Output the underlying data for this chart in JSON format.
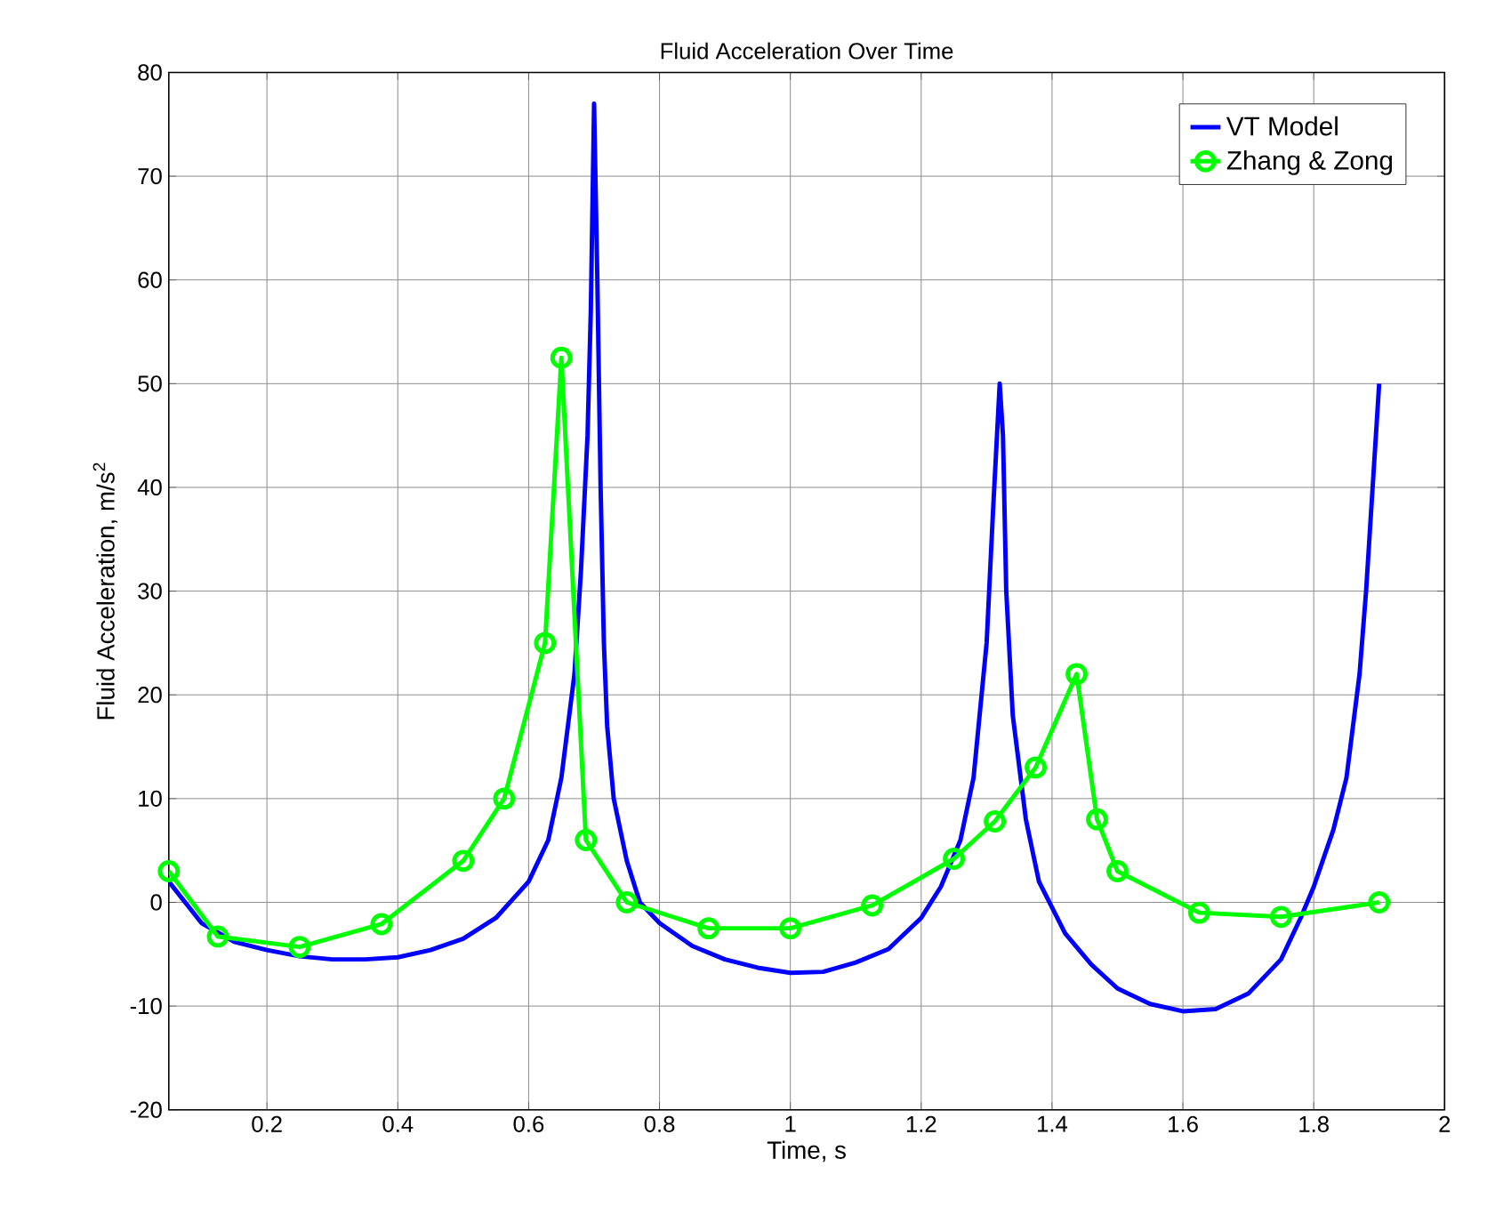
{
  "chart_data": {
    "type": "line",
    "title": "Fluid Acceleration Over Time",
    "xlabel": "Time, s",
    "ylabel": "Fluid Acceleration, m/s$^{2}$",
    "xlim": [
      0.05,
      2
    ],
    "ylim": [
      -20,
      80
    ],
    "xticks": [
      0.2,
      0.4,
      0.6,
      0.8,
      1,
      1.2,
      1.4,
      1.6,
      1.8,
      2
    ],
    "yticks": [
      -20,
      -10,
      0,
      10,
      20,
      30,
      40,
      50,
      60,
      70,
      80
    ],
    "grid": true,
    "legend": "top right",
    "series": [
      {
        "name": "VT Model",
        "color": "#0000ff",
        "marker": "none",
        "x": [
          0.05,
          0.1,
          0.15,
          0.2,
          0.25,
          0.3,
          0.35,
          0.4,
          0.45,
          0.5,
          0.55,
          0.6,
          0.63,
          0.65,
          0.67,
          0.68,
          0.69,
          0.695,
          0.7,
          0.705,
          0.71,
          0.715,
          0.72,
          0.73,
          0.75,
          0.77,
          0.8,
          0.85,
          0.9,
          0.95,
          1.0,
          1.05,
          1.1,
          1.15,
          1.2,
          1.23,
          1.26,
          1.28,
          1.3,
          1.31,
          1.32,
          1.325,
          1.33,
          1.34,
          1.36,
          1.38,
          1.42,
          1.46,
          1.5,
          1.55,
          1.6,
          1.65,
          1.7,
          1.75,
          1.78,
          1.8,
          1.83,
          1.85,
          1.87,
          1.88,
          1.89,
          1.9
        ],
        "values": [
          2,
          -2,
          -3.8,
          -4.6,
          -5.2,
          -5.5,
          -5.5,
          -5.3,
          -4.6,
          -3.5,
          -1.5,
          2,
          6,
          12,
          22,
          32,
          45,
          57,
          77,
          60,
          40,
          25,
          17,
          10,
          4,
          0,
          -2,
          -4.2,
          -5.5,
          -6.3,
          -6.8,
          -6.7,
          -5.8,
          -4.5,
          -1.5,
          1.5,
          6,
          12,
          25,
          38,
          50,
          45,
          30,
          18,
          8,
          2,
          -3,
          -6,
          -8.3,
          -9.8,
          -10.5,
          -10.3,
          -8.8,
          -5.5,
          -1.5,
          1.5,
          7,
          12,
          22,
          30,
          40,
          50
        ]
      },
      {
        "name": "Zhang & Zong",
        "color": "#00ff00",
        "marker": "circle",
        "x": [
          0.05,
          0.125,
          0.25,
          0.375,
          0.5,
          0.5625,
          0.625,
          0.65,
          0.6875,
          0.75,
          0.875,
          1.0,
          1.125,
          1.25,
          1.3125,
          1.375,
          1.4375,
          1.46875,
          1.5,
          1.625,
          1.75,
          1.9
        ],
        "values": [
          3,
          -3.3,
          -4.3,
          -2.1,
          4,
          10,
          25,
          52.5,
          6,
          0,
          -2.5,
          -2.5,
          -0.3,
          4.2,
          7.8,
          13,
          22,
          8,
          3,
          -1,
          -1.4,
          0
        ]
      }
    ]
  }
}
